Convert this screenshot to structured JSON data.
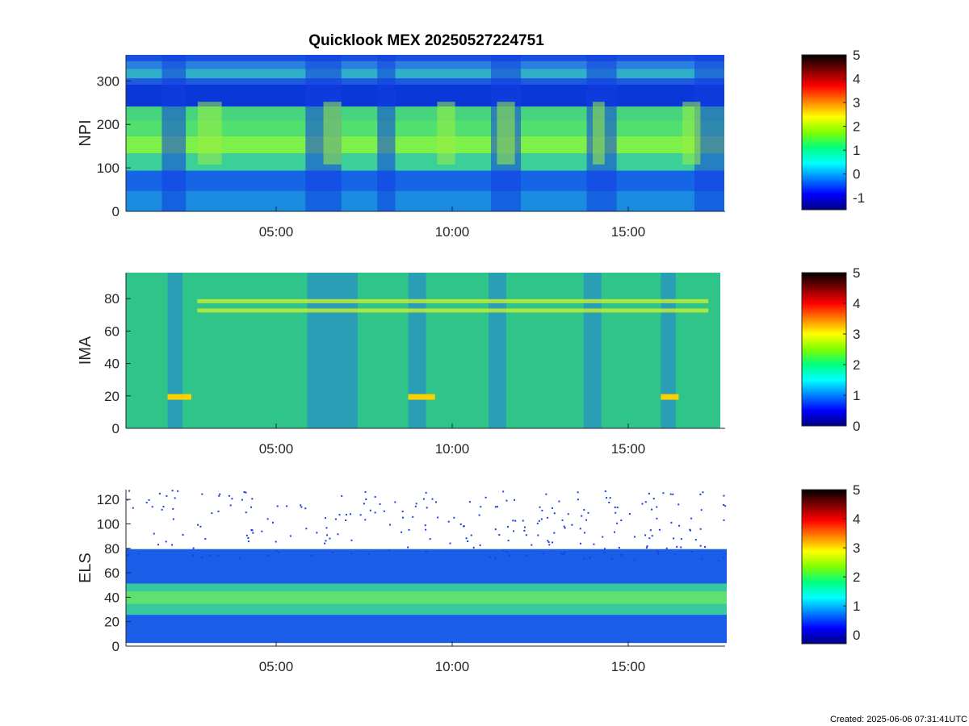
{
  "title": "Quicklook MEX 20250527224751",
  "footer": "Created: 2025-06-06 07:31:41UTC",
  "colormap": [
    "#000080",
    "#0000ff",
    "#0080ff",
    "#00ffff",
    "#00ff80",
    "#80ff00",
    "#ffff00",
    "#ff8000",
    "#ff0000",
    "#800000",
    "#000000"
  ],
  "chart_data": [
    {
      "type": "heatmap",
      "ylabel": "NPI",
      "x_tick_labels": [
        "05:00",
        "10:00",
        "15:00"
      ],
      "y_ticks": [
        0,
        100,
        200,
        300
      ],
      "ylim": [
        0,
        360
      ],
      "colorbar": {
        "range": [
          -1.5,
          5
        ],
        "ticks": [
          -1,
          0,
          1,
          2,
          3,
          4,
          5
        ]
      }
    },
    {
      "type": "heatmap",
      "ylabel": "IMA",
      "x_tick_labels": [
        "05:00",
        "10:00",
        "15:00"
      ],
      "y_ticks": [
        0,
        20,
        40,
        60,
        80
      ],
      "ylim": [
        0,
        96
      ],
      "colorbar": {
        "range": [
          0,
          5
        ],
        "ticks": [
          0,
          1,
          2,
          3,
          4,
          5
        ]
      }
    },
    {
      "type": "heatmap",
      "ylabel": "ELS",
      "x_tick_labels": [
        "05:00",
        "10:00",
        "15:00"
      ],
      "y_ticks": [
        0,
        20,
        40,
        60,
        80,
        100,
        120
      ],
      "ylim": [
        0,
        128
      ],
      "colorbar": {
        "range": [
          -0.3,
          5
        ],
        "ticks": [
          0,
          1,
          2,
          3,
          4,
          5
        ]
      }
    }
  ]
}
